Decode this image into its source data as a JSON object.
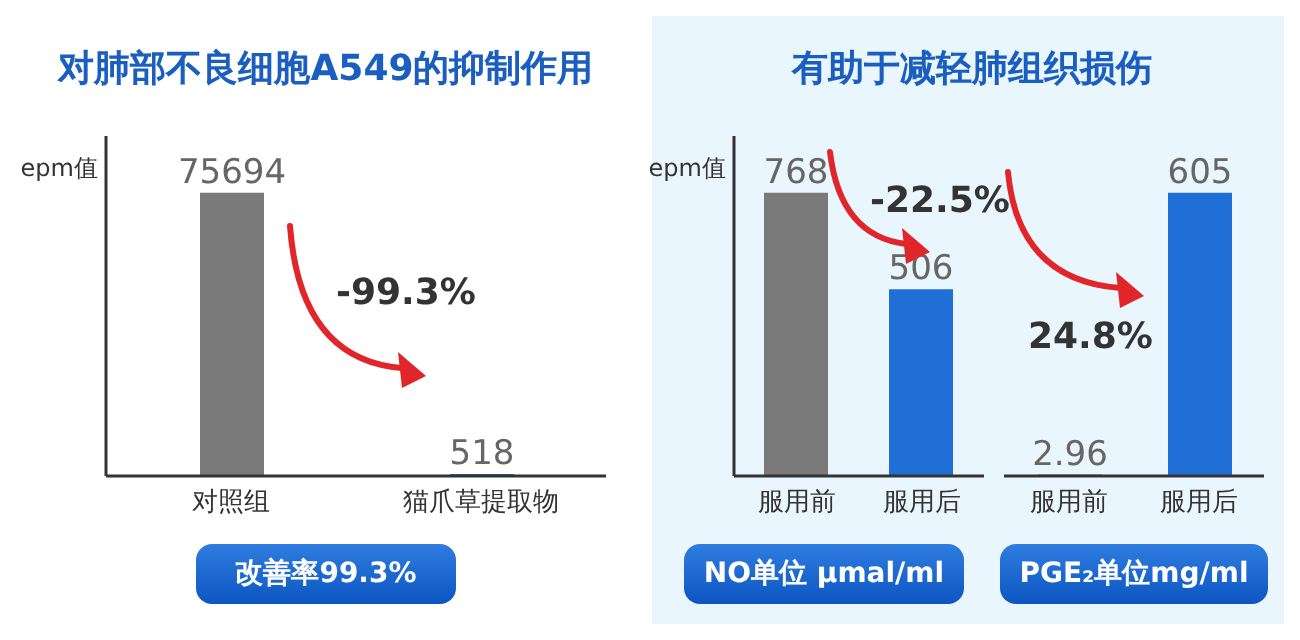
{
  "chart_data": [
    {
      "type": "bar",
      "title": "对肺部不良细胞A549的抑制作用",
      "ylabel": "epm值",
      "categories": [
        "对照组",
        "猫爪草提取物"
      ],
      "values": [
        75694,
        518
      ],
      "colors": [
        "#7a7a7a",
        "#1f6fd6"
      ],
      "data_labels": true,
      "tick_labels": false,
      "grid": false,
      "legend": false,
      "annotations": [
        "-99.3%",
        "改善率99.3%"
      ]
    },
    {
      "type": "bar",
      "title": "有助于减轻肺组织损伤",
      "ylabel": "epm值",
      "categories": [
        "服用前",
        "服用后"
      ],
      "values": [
        768,
        506
      ],
      "colors": [
        "#7a7a7a",
        "#1f6fd6"
      ],
      "data_labels": true,
      "tick_labels": false,
      "grid": false,
      "legend": false,
      "annotations": [
        "-22.5%",
        "NO单位 μmal/ml"
      ]
    },
    {
      "type": "bar",
      "categories": [
        "服用前",
        "服用后"
      ],
      "values": [
        2.96,
        605
      ],
      "colors": [
        "#7a7a7a",
        "#1f6fd6"
      ],
      "data_labels": true,
      "tick_labels": false,
      "grid": false,
      "legend": false,
      "annotations": [
        "24.8%",
        "PGE₂单位mg/ml"
      ]
    }
  ]
}
